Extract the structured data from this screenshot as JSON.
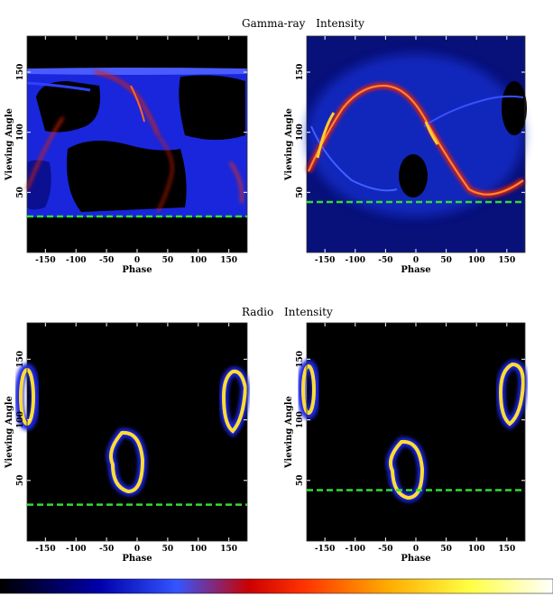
{
  "titles": {
    "gamma": [
      "Gamma-ray",
      "Intensity"
    ],
    "radio": [
      "Radio",
      "Intensity"
    ]
  },
  "chart_data": [
    {
      "type": "heatmap",
      "panel": "gamma-left",
      "xlabel": "Phase",
      "ylabel": "Viewing Angle",
      "xlim": [
        -180,
        180
      ],
      "ylim": [
        0,
        180
      ],
      "xticks": [
        -150,
        -100,
        -50,
        0,
        50,
        100,
        150
      ],
      "yticks": [
        50,
        100,
        150
      ],
      "dashed_line_y": 30,
      "dashed_line_color": "#33dd33"
    },
    {
      "type": "heatmap",
      "panel": "gamma-right",
      "xlabel": "Phase",
      "ylabel": "Viewing Angle",
      "xlim": [
        -180,
        180
      ],
      "ylim": [
        0,
        180
      ],
      "xticks": [
        -150,
        -100,
        -50,
        0,
        50,
        100,
        150
      ],
      "yticks": [
        50,
        100,
        150
      ],
      "dashed_line_y": 42,
      "dashed_line_color": "#33dd33"
    },
    {
      "type": "heatmap",
      "panel": "radio-left",
      "xlabel": "Phase",
      "ylabel": "Viewing Angle",
      "xlim": [
        -180,
        180
      ],
      "ylim": [
        0,
        180
      ],
      "xticks": [
        -150,
        -100,
        -50,
        0,
        50,
        100,
        150
      ],
      "yticks": [
        50,
        100,
        150
      ],
      "dashed_line_y": 30,
      "dashed_line_color": "#33dd33"
    },
    {
      "type": "heatmap",
      "panel": "radio-right",
      "xlabel": "Phase",
      "ylabel": "Viewing Angle",
      "xlim": [
        -180,
        180
      ],
      "ylim": [
        0,
        180
      ],
      "xticks": [
        -150,
        -100,
        -50,
        0,
        50,
        100,
        150
      ],
      "yticks": [
        50,
        100,
        150
      ],
      "dashed_line_y": 42,
      "dashed_line_color": "#33dd33"
    }
  ],
  "colorbar": {
    "stops": [
      "#000000",
      "#0000aa",
      "#3355ff",
      "#cc0000",
      "#ff3300",
      "#ffaa00",
      "#ffff44",
      "#ffffff"
    ]
  }
}
